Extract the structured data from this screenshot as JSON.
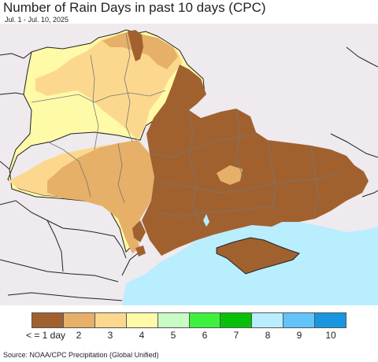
{
  "header": {
    "title": "Number of Rain Days in past 10 days (CPC)",
    "subtitle": "Jul. 1 - Jul. 10, 2025"
  },
  "legend": {
    "items": [
      {
        "label": "< = 1 day",
        "color": "#a0612f"
      },
      {
        "label": "2",
        "color": "#e6b068"
      },
      {
        "label": "3",
        "color": "#fcd88f"
      },
      {
        "label": "4",
        "color": "#fffaa8"
      },
      {
        "label": "5",
        "color": "#c8fcc4"
      },
      {
        "label": "6",
        "color": "#3cf23c"
      },
      {
        "label": "7",
        "color": "#08c008"
      },
      {
        "label": "8",
        "color": "#b8eefe"
      },
      {
        "label": "9",
        "color": "#62c4fa"
      },
      {
        "label": "10",
        "color": "#1896e0"
      }
    ]
  },
  "map": {
    "background_color": "#eeeaee",
    "sea_color": "#b8eefe",
    "border_color": "#222222",
    "admin_border_color": "#777777"
  },
  "footer": {
    "source": "Source: NOAA/CPC Precipitation (Global Unified)"
  }
}
